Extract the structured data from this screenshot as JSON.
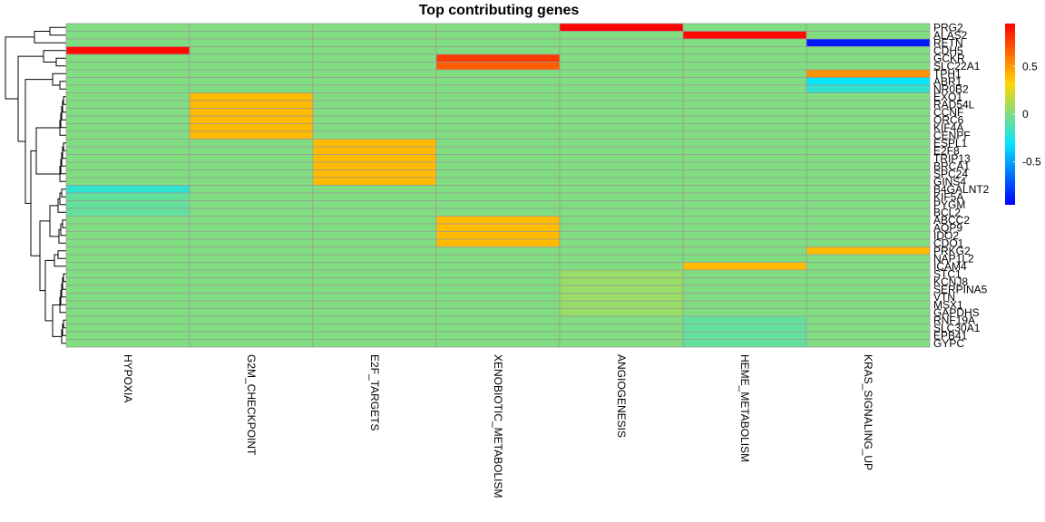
{
  "chart_data": {
    "type": "heatmap",
    "title": "Top contributing genes",
    "columns": [
      "HYPOXIA",
      "G2M_CHECKPOINT",
      "E2F_TARGETS",
      "XENOBIOTIC_METABOLISM",
      "ANGIOGENESIS",
      "HEME_METABOLISM",
      "KRAS_SIGNALING_UP"
    ],
    "rows": [
      "PRG2",
      "ALAS2",
      "RETN",
      "CDH5",
      "GCKR",
      "SLC22A1",
      "TPH1",
      "ABR1",
      "NR0B2",
      "EXO1",
      "RAD54L",
      "CCNF",
      "ORC6",
      "KIF4A",
      "CENPF",
      "ESPL1",
      "E2F8",
      "TRIP13",
      "BRCA1",
      "SPC24",
      "GINS4",
      "B4GALNT2",
      "KIF5A",
      "PYGM",
      "BCL2",
      "ABCC2",
      "AQP9",
      "IDO2",
      "CDO1",
      "PRKG2",
      "NAP1L2",
      "ICAM4",
      "STC1",
      "KCNJ8",
      "SERPINA5",
      "VTN",
      "MSX1",
      "GAPDHS",
      "RNF19A",
      "SLC30A1",
      "EPB41",
      "GYPC"
    ],
    "values": [
      [
        0,
        0,
        0,
        0,
        0.95,
        0,
        0
      ],
      [
        0,
        0,
        0,
        0,
        0,
        0.92,
        0
      ],
      [
        0,
        0,
        0,
        0,
        0,
        0,
        -0.88
      ],
      [
        0.92,
        0,
        0,
        0,
        0,
        0,
        0
      ],
      [
        0,
        0,
        0,
        0.78,
        0,
        0,
        0
      ],
      [
        0,
        0,
        0,
        0.68,
        0,
        0,
        0
      ],
      [
        0,
        0,
        0,
        0,
        0,
        0,
        0.52
      ],
      [
        0,
        0,
        0,
        0,
        0,
        0,
        -0.3
      ],
      [
        0,
        0,
        0,
        0,
        0,
        0,
        -0.2
      ],
      [
        0,
        0.4,
        0,
        0,
        0,
        0,
        0
      ],
      [
        0,
        0.4,
        0,
        0,
        0,
        0,
        0
      ],
      [
        0,
        0.4,
        0,
        0,
        0,
        0,
        0
      ],
      [
        0,
        0.4,
        0,
        0,
        0,
        0,
        0
      ],
      [
        0,
        0.4,
        0,
        0,
        0,
        0,
        0
      ],
      [
        0,
        0.4,
        0,
        0,
        0,
        0,
        0
      ],
      [
        0,
        0,
        0.4,
        0,
        0,
        0,
        0
      ],
      [
        0,
        0,
        0.4,
        0,
        0,
        0,
        0
      ],
      [
        0,
        0,
        0.4,
        0,
        0,
        0,
        0
      ],
      [
        0,
        0,
        0.4,
        0,
        0,
        0,
        0
      ],
      [
        0,
        0,
        0.4,
        0,
        0,
        0,
        0
      ],
      [
        0,
        0,
        0.4,
        0,
        0,
        0,
        0
      ],
      [
        -0.2,
        0,
        0,
        0,
        0,
        0,
        0
      ],
      [
        -0.07,
        0,
        0,
        0,
        0,
        0,
        0
      ],
      [
        -0.07,
        0,
        0,
        0,
        0,
        0,
        0
      ],
      [
        -0.07,
        0,
        0,
        0,
        0,
        0,
        0
      ],
      [
        0,
        0,
        0,
        0.4,
        0,
        0,
        0
      ],
      [
        0,
        0,
        0,
        0.4,
        0,
        0,
        0
      ],
      [
        0,
        0,
        0,
        0.4,
        0,
        0,
        0
      ],
      [
        0,
        0,
        0,
        0.4,
        0,
        0,
        0
      ],
      [
        0,
        0,
        0,
        0,
        0,
        0,
        0.4
      ],
      [
        0,
        0,
        0,
        0,
        0,
        0,
        0
      ],
      [
        0,
        0,
        0,
        0,
        0,
        0.4,
        0
      ],
      [
        0,
        0,
        0,
        0,
        0.06,
        0,
        0
      ],
      [
        0,
        0,
        0,
        0,
        0.06,
        0,
        0
      ],
      [
        0,
        0,
        0,
        0,
        0.06,
        0,
        0
      ],
      [
        0,
        0,
        0,
        0,
        0.06,
        0,
        0
      ],
      [
        0,
        0,
        0,
        0,
        0.06,
        0,
        0
      ],
      [
        0,
        0,
        0,
        0,
        0.06,
        0,
        0
      ],
      [
        0,
        0,
        0,
        0,
        0,
        -0.07,
        0
      ],
      [
        0,
        0,
        0,
        0,
        0,
        -0.07,
        0
      ],
      [
        0,
        0,
        0,
        0,
        0,
        -0.07,
        0
      ],
      [
        0,
        0,
        0,
        0,
        0,
        -0.07,
        0
      ]
    ],
    "value_range": [
      -0.95,
      0.95
    ],
    "legend_ticks": [
      0.5,
      0,
      -0.5
    ],
    "legend_tick_labels": [
      "0.5",
      "0",
      "-0.5"
    ],
    "legend_position": "right",
    "colorscale": [
      "#0000ff",
      "#00e5ff",
      "#ffd700",
      "#ff0000"
    ],
    "grid": true,
    "row_dendrogram": true
  }
}
